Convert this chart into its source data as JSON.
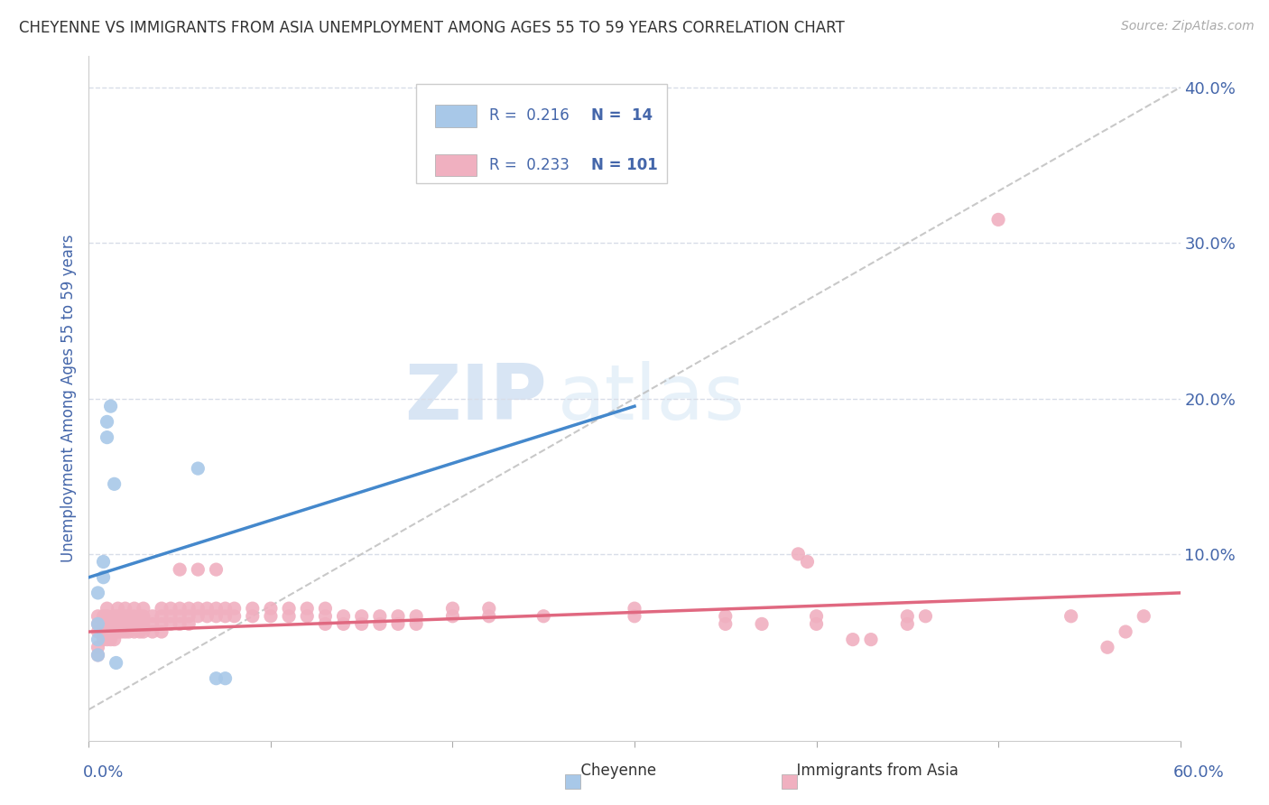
{
  "title": "CHEYENNE VS IMMIGRANTS FROM ASIA UNEMPLOYMENT AMONG AGES 55 TO 59 YEARS CORRELATION CHART",
  "source": "Source: ZipAtlas.com",
  "ylabel": "Unemployment Among Ages 55 to 59 years",
  "xlim": [
    0.0,
    0.6
  ],
  "ylim": [
    -0.02,
    0.42
  ],
  "yticks": [
    0.0,
    0.1,
    0.2,
    0.3,
    0.4
  ],
  "ytick_labels": [
    "",
    "10.0%",
    "20.0%",
    "30.0%",
    "40.0%"
  ],
  "xtick_positions": [
    0.0,
    0.1,
    0.2,
    0.3,
    0.4,
    0.5,
    0.6
  ],
  "watermark_zip": "ZIP",
  "watermark_atlas": "atlas",
  "cheyenne_color": "#a8c8e8",
  "asia_color": "#f0b0c0",
  "cheyenne_line_color": "#4488cc",
  "asia_line_color": "#e06880",
  "dashed_line_color": "#bbbbbb",
  "cheyenne_scatter": [
    [
      0.005,
      0.035
    ],
    [
      0.005,
      0.045
    ],
    [
      0.005,
      0.055
    ],
    [
      0.005,
      0.075
    ],
    [
      0.008,
      0.085
    ],
    [
      0.008,
      0.095
    ],
    [
      0.01,
      0.175
    ],
    [
      0.01,
      0.185
    ],
    [
      0.012,
      0.195
    ],
    [
      0.014,
      0.145
    ],
    [
      0.015,
      0.03
    ],
    [
      0.06,
      0.155
    ],
    [
      0.07,
      0.02
    ],
    [
      0.075,
      0.02
    ]
  ],
  "asia_scatter": [
    [
      0.005,
      0.04
    ],
    [
      0.005,
      0.05
    ],
    [
      0.005,
      0.055
    ],
    [
      0.005,
      0.06
    ],
    [
      0.008,
      0.045
    ],
    [
      0.008,
      0.05
    ],
    [
      0.008,
      0.055
    ],
    [
      0.008,
      0.06
    ],
    [
      0.01,
      0.045
    ],
    [
      0.01,
      0.05
    ],
    [
      0.01,
      0.055
    ],
    [
      0.01,
      0.06
    ],
    [
      0.01,
      0.065
    ],
    [
      0.012,
      0.045
    ],
    [
      0.012,
      0.05
    ],
    [
      0.012,
      0.055
    ],
    [
      0.014,
      0.045
    ],
    [
      0.014,
      0.05
    ],
    [
      0.014,
      0.055
    ],
    [
      0.014,
      0.06
    ],
    [
      0.016,
      0.05
    ],
    [
      0.016,
      0.055
    ],
    [
      0.016,
      0.06
    ],
    [
      0.016,
      0.065
    ],
    [
      0.018,
      0.05
    ],
    [
      0.018,
      0.055
    ],
    [
      0.018,
      0.06
    ],
    [
      0.02,
      0.05
    ],
    [
      0.02,
      0.055
    ],
    [
      0.02,
      0.06
    ],
    [
      0.02,
      0.065
    ],
    [
      0.022,
      0.05
    ],
    [
      0.022,
      0.055
    ],
    [
      0.022,
      0.06
    ],
    [
      0.025,
      0.05
    ],
    [
      0.025,
      0.055
    ],
    [
      0.025,
      0.06
    ],
    [
      0.025,
      0.065
    ],
    [
      0.028,
      0.05
    ],
    [
      0.028,
      0.055
    ],
    [
      0.028,
      0.06
    ],
    [
      0.03,
      0.05
    ],
    [
      0.03,
      0.055
    ],
    [
      0.03,
      0.06
    ],
    [
      0.03,
      0.065
    ],
    [
      0.035,
      0.05
    ],
    [
      0.035,
      0.055
    ],
    [
      0.035,
      0.06
    ],
    [
      0.04,
      0.05
    ],
    [
      0.04,
      0.055
    ],
    [
      0.04,
      0.06
    ],
    [
      0.04,
      0.065
    ],
    [
      0.045,
      0.055
    ],
    [
      0.045,
      0.06
    ],
    [
      0.045,
      0.065
    ],
    [
      0.05,
      0.055
    ],
    [
      0.05,
      0.06
    ],
    [
      0.05,
      0.065
    ],
    [
      0.05,
      0.09
    ],
    [
      0.055,
      0.055
    ],
    [
      0.055,
      0.06
    ],
    [
      0.055,
      0.065
    ],
    [
      0.06,
      0.06
    ],
    [
      0.06,
      0.065
    ],
    [
      0.06,
      0.09
    ],
    [
      0.065,
      0.06
    ],
    [
      0.065,
      0.065
    ],
    [
      0.07,
      0.06
    ],
    [
      0.07,
      0.065
    ],
    [
      0.07,
      0.09
    ],
    [
      0.075,
      0.06
    ],
    [
      0.075,
      0.065
    ],
    [
      0.08,
      0.06
    ],
    [
      0.08,
      0.065
    ],
    [
      0.09,
      0.06
    ],
    [
      0.09,
      0.065
    ],
    [
      0.1,
      0.06
    ],
    [
      0.1,
      0.065
    ],
    [
      0.11,
      0.06
    ],
    [
      0.11,
      0.065
    ],
    [
      0.12,
      0.06
    ],
    [
      0.12,
      0.065
    ],
    [
      0.13,
      0.055
    ],
    [
      0.13,
      0.06
    ],
    [
      0.13,
      0.065
    ],
    [
      0.14,
      0.055
    ],
    [
      0.14,
      0.06
    ],
    [
      0.15,
      0.055
    ],
    [
      0.15,
      0.06
    ],
    [
      0.16,
      0.055
    ],
    [
      0.16,
      0.06
    ],
    [
      0.17,
      0.055
    ],
    [
      0.17,
      0.06
    ],
    [
      0.18,
      0.055
    ],
    [
      0.18,
      0.06
    ],
    [
      0.2,
      0.06
    ],
    [
      0.2,
      0.065
    ],
    [
      0.22,
      0.06
    ],
    [
      0.22,
      0.065
    ],
    [
      0.25,
      0.06
    ],
    [
      0.3,
      0.06
    ],
    [
      0.3,
      0.065
    ],
    [
      0.35,
      0.055
    ],
    [
      0.35,
      0.06
    ],
    [
      0.37,
      0.055
    ],
    [
      0.4,
      0.055
    ],
    [
      0.4,
      0.06
    ],
    [
      0.45,
      0.055
    ],
    [
      0.45,
      0.06
    ],
    [
      0.5,
      0.315
    ],
    [
      0.54,
      0.06
    ],
    [
      0.56,
      0.04
    ],
    [
      0.57,
      0.05
    ],
    [
      0.58,
      0.06
    ],
    [
      0.005,
      0.035
    ],
    [
      0.39,
      0.1
    ],
    [
      0.395,
      0.095
    ],
    [
      0.42,
      0.045
    ],
    [
      0.43,
      0.045
    ],
    [
      0.46,
      0.06
    ]
  ],
  "cheyenne_line": {
    "x0": 0.0,
    "y0": 0.085,
    "x1": 0.3,
    "y1": 0.195
  },
  "asia_line": {
    "x0": 0.0,
    "y0": 0.05,
    "x1": 0.6,
    "y1": 0.075
  },
  "dashed_line": {
    "x0": 0.0,
    "y0": 0.0,
    "x1": 0.6,
    "y1": 0.4
  },
  "background_color": "#ffffff",
  "grid_color": "#d8dde8",
  "title_color": "#333333",
  "axis_label_color": "#4466aa",
  "source_color": "#aaaaaa"
}
